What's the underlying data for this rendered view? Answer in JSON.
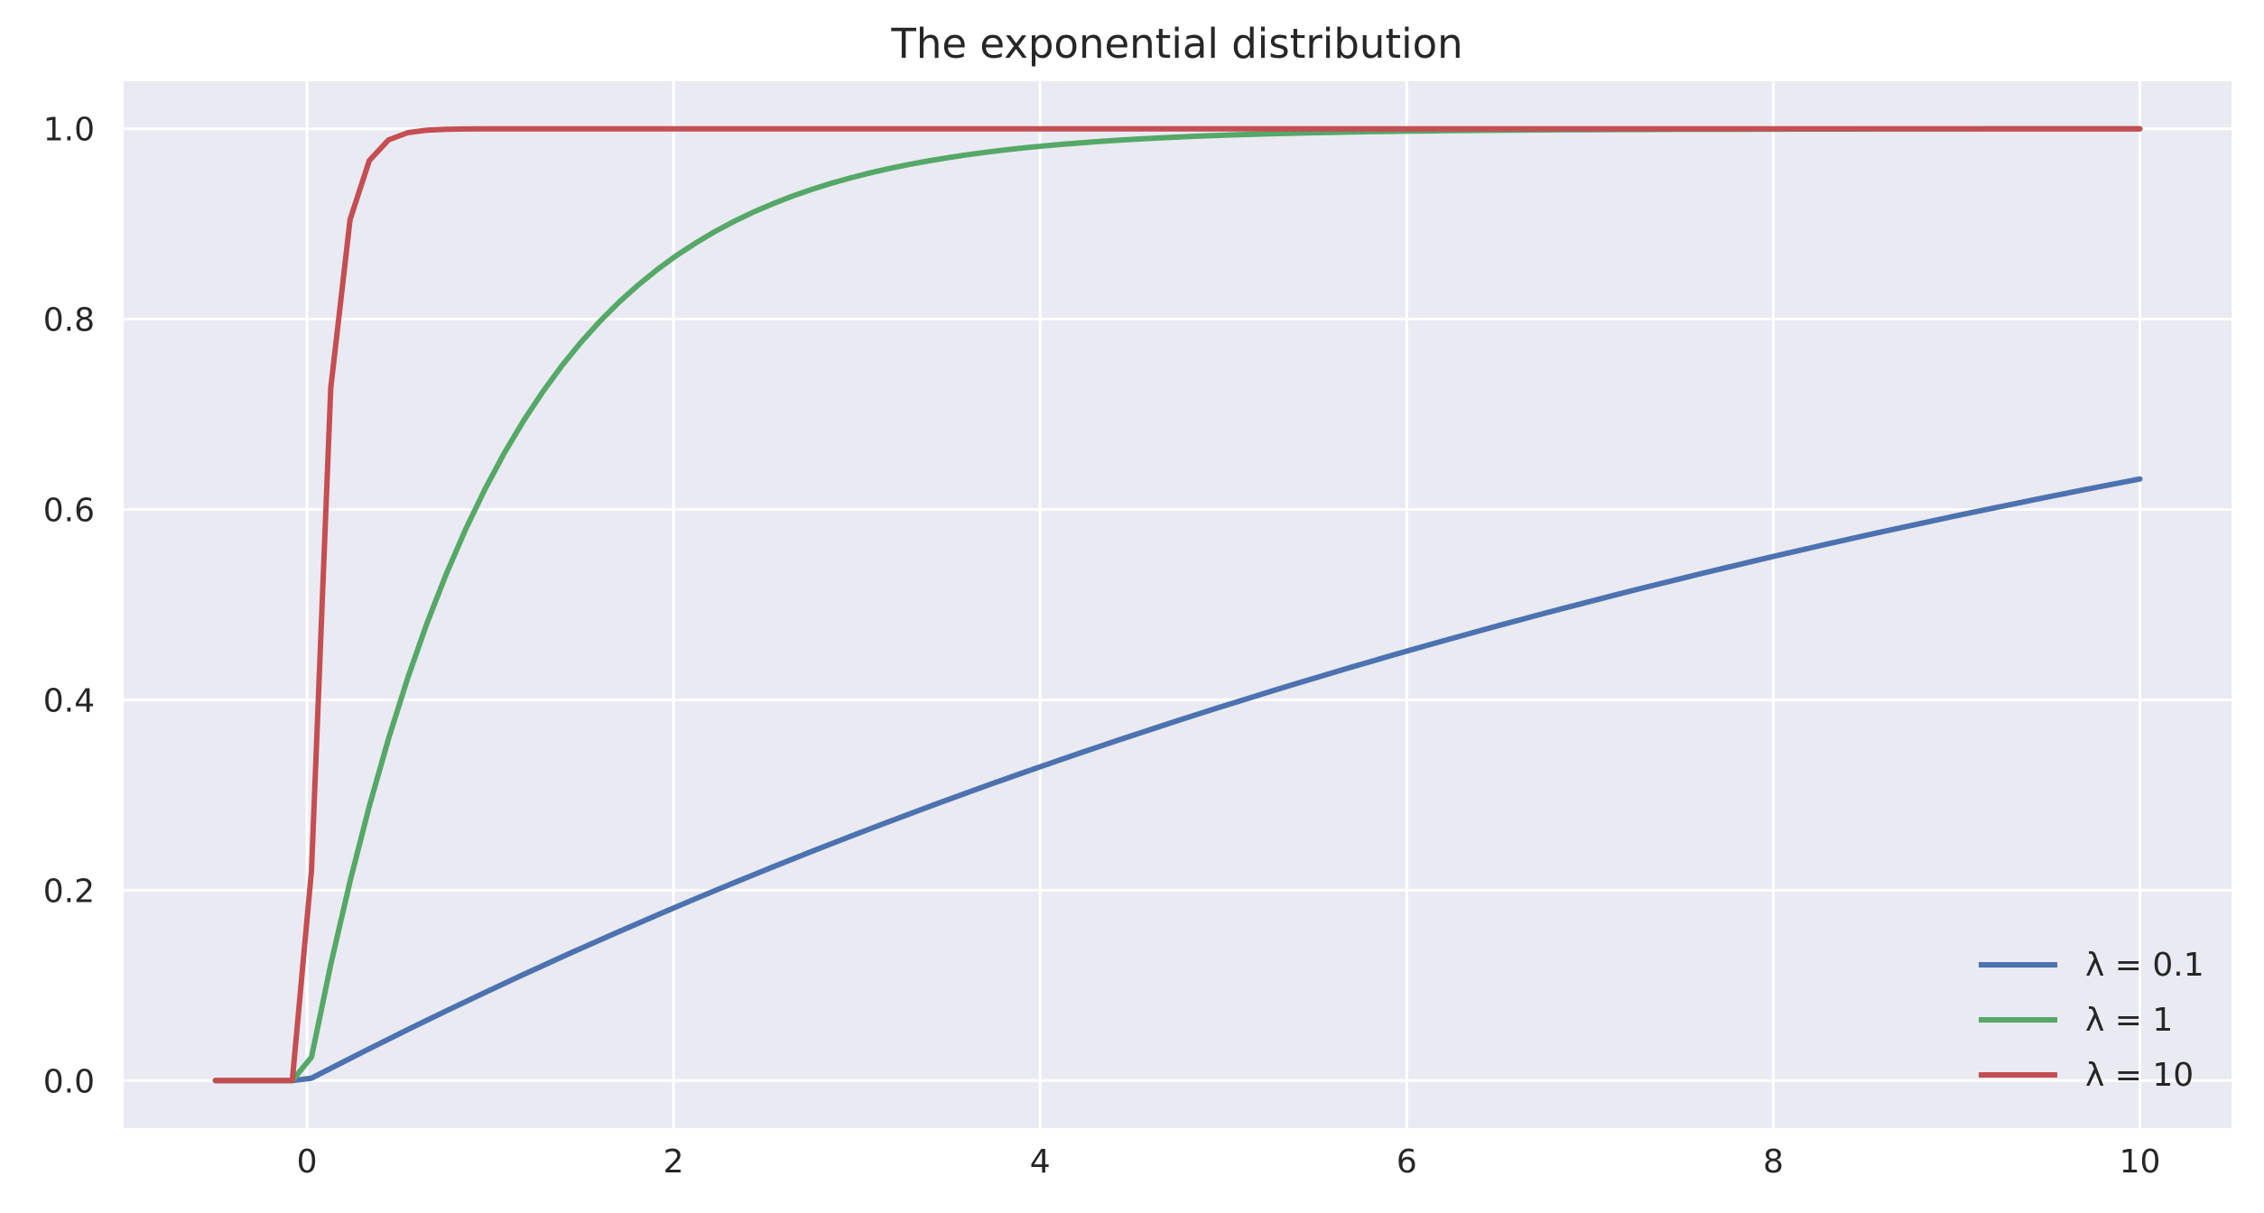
{
  "chart_data": {
    "type": "line",
    "title": "The exponential distribution",
    "xlabel": "",
    "ylabel": "",
    "xlim": [
      -1,
      10.5
    ],
    "ylim": [
      -0.05,
      1.05
    ],
    "xticks": [
      0,
      2,
      4,
      6,
      8,
      10
    ],
    "xtick_labels": [
      "0",
      "2",
      "4",
      "6",
      "8",
      "10"
    ],
    "yticks": [
      0.0,
      0.2,
      0.4,
      0.6,
      0.8,
      1.0
    ],
    "ytick_labels": [
      "0.0",
      "0.2",
      "0.4",
      "0.6",
      "0.8",
      "1.0"
    ],
    "grid": true,
    "legend_position": "lower-right",
    "colors": {
      "background": "#eaeaf2",
      "grid": "#ffffff"
    },
    "x_range": [
      -0.5,
      10
    ],
    "series": [
      {
        "name": "λ = 0.1",
        "lambda": 0.1,
        "color": "#4c72b0"
      },
      {
        "name": "λ = 1",
        "lambda": 1,
        "color": "#55a868"
      },
      {
        "name": "λ = 10",
        "lambda": 10,
        "color": "#c44e52"
      }
    ]
  }
}
